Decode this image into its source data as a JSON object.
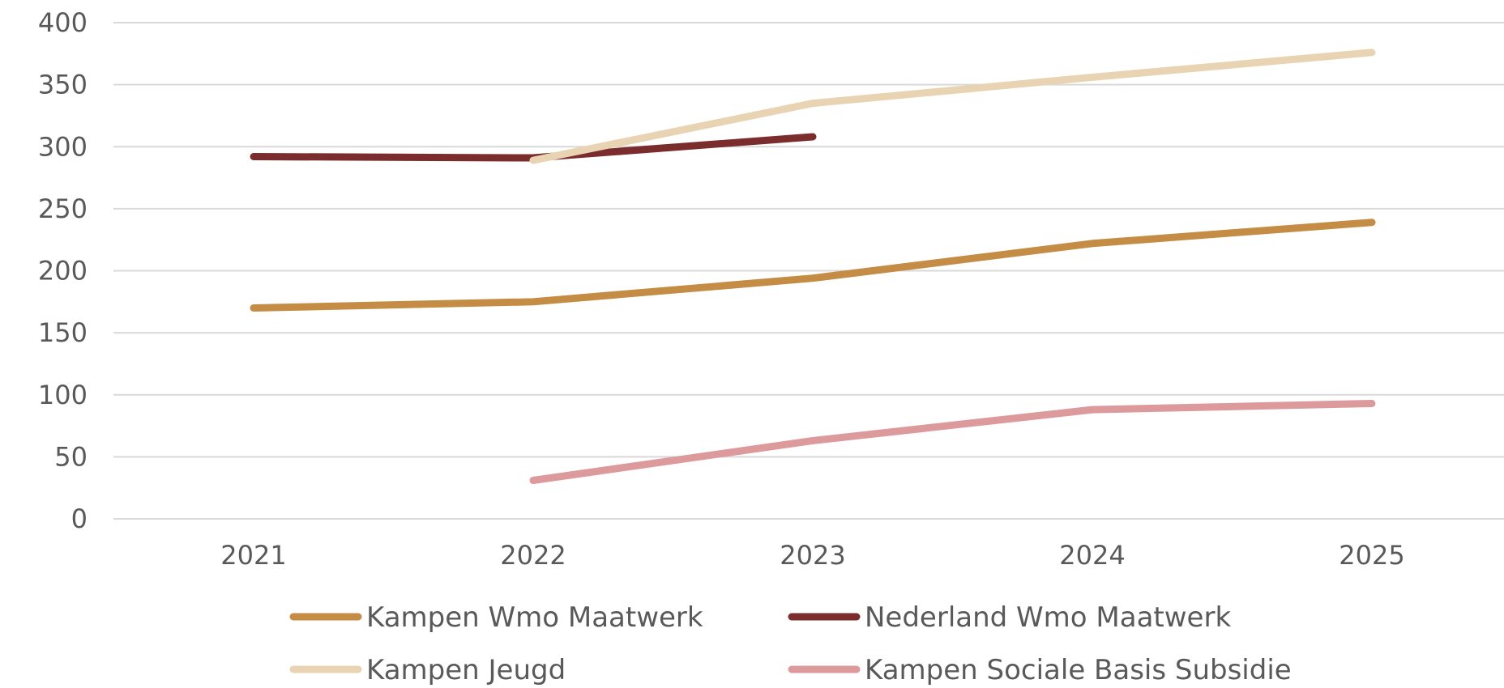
{
  "chart_data": {
    "type": "line",
    "title": "",
    "xlabel": "",
    "ylabel": "",
    "categories": [
      "2021",
      "2022",
      "2023",
      "2024",
      "2025"
    ],
    "ylim": [
      0,
      400
    ],
    "yticks": [
      0,
      50,
      100,
      150,
      200,
      250,
      300,
      350,
      400
    ],
    "grid": true,
    "legend_position": "bottom",
    "series": [
      {
        "name": "Kampen Wmo Maatwerk",
        "color": "#c48c44",
        "values": [
          170,
          175,
          194,
          222,
          239
        ]
      },
      {
        "name": "Nederland Wmo Maatwerk",
        "color": "#7b2c2c",
        "values": [
          292,
          291,
          308,
          null,
          null
        ]
      },
      {
        "name": "Kampen Jeugd",
        "color": "#e8d4b2",
        "values": [
          null,
          289,
          335,
          356,
          376
        ]
      },
      {
        "name": "Kampen Sociale Basis Subsidie",
        "color": "#dc9a9c",
        "values": [
          null,
          31,
          63,
          88,
          93
        ]
      }
    ]
  }
}
